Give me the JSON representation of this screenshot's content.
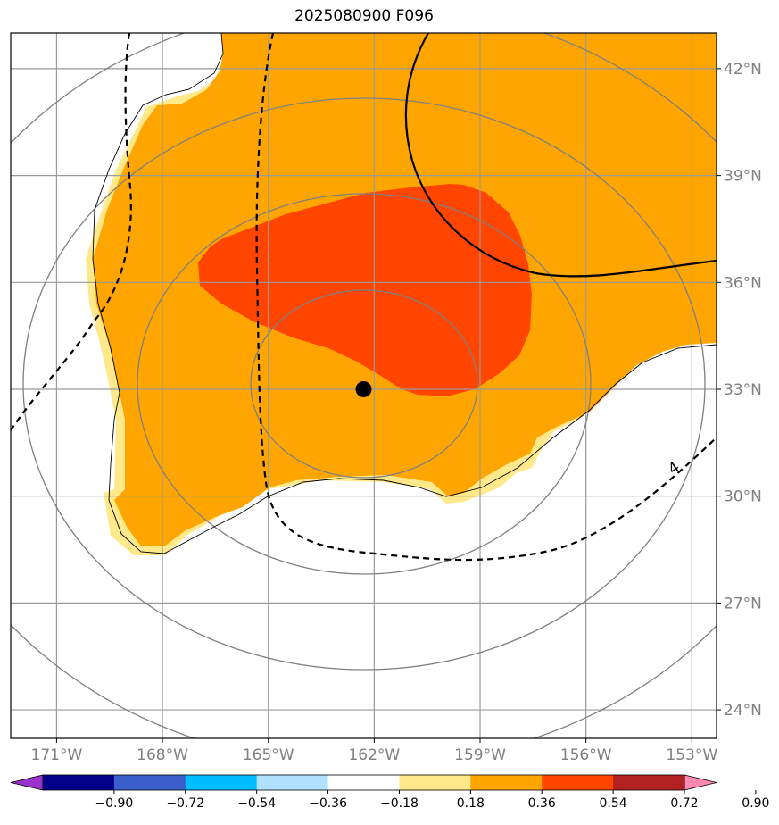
{
  "chart_data": {
    "type": "heatmap",
    "title": "2025080900 F096",
    "x_ticks": [
      "171°W",
      "168°W",
      "165°W",
      "162°W",
      "159°W",
      "156°W",
      "153°W"
    ],
    "y_ticks": [
      "42°N",
      "39°N",
      "36°N",
      "33°N",
      "30°N",
      "27°N",
      "24°N"
    ],
    "x_tick_values": [
      -171,
      -168,
      -165,
      -162,
      -159,
      -156,
      -153
    ],
    "y_tick_values": [
      42,
      39,
      36,
      33,
      30,
      27,
      24
    ],
    "xlim": [
      -172.3,
      -152.3
    ],
    "ylim": [
      23.2,
      43.0
    ],
    "grid": true,
    "colorbar": {
      "orientation": "horizontal",
      "extend": "both",
      "levels": [
        -0.9,
        -0.72,
        -0.54,
        -0.36,
        -0.18,
        0.18,
        0.36,
        0.54,
        0.72,
        0.9
      ],
      "tick_labels": [
        "−0.90",
        "−0.72",
        "−0.54",
        "−0.36",
        "−0.18",
        "0.18",
        "0.36",
        "0.54",
        "0.72",
        "0.90"
      ],
      "colors": [
        "#9933cc",
        "#00008b",
        "#3a5fcd",
        "#00bfff",
        "#b0e2ff",
        "#ffffff",
        "#ffe98a",
        "#ffa500",
        "#ff4500",
        "#b22222",
        "#ff88b0"
      ]
    },
    "center_marker": {
      "lon": -162.3,
      "lat": 33.0,
      "color": "#000000"
    },
    "range_rings_color": "#808080",
    "contour_label": "4"
  }
}
